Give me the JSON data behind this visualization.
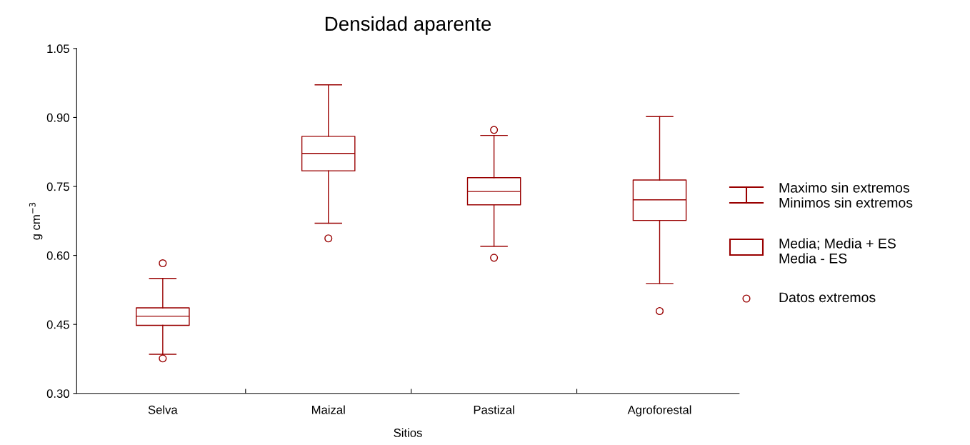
{
  "chart_data": {
    "type": "box",
    "title": "Densidad aparente",
    "xlabel": "Sitios",
    "ylabel": "g cm$^{−3}$",
    "categories": [
      "Selva",
      "Maizal",
      "Pastizal",
      "Agroforestal"
    ],
    "color": "#990000",
    "boxes": [
      {
        "low": 0.385,
        "q1": 0.448,
        "median": 0.468,
        "q3": 0.486,
        "high": 0.55,
        "outliers": [
          0.583,
          0.376
        ]
      },
      {
        "low": 0.67,
        "q1": 0.784,
        "median": 0.822,
        "q3": 0.859,
        "high": 0.971,
        "outliers": [
          0.637
        ]
      },
      {
        "low": 0.62,
        "q1": 0.71,
        "median": 0.739,
        "q3": 0.769,
        "high": 0.861,
        "outliers": [
          0.873,
          0.595
        ]
      },
      {
        "low": 0.539,
        "q1": 0.676,
        "median": 0.721,
        "q3": 0.764,
        "high": 0.902,
        "outliers": [
          0.479
        ]
      }
    ],
    "ylim": [
      0.3,
      1.05
    ],
    "yticks": [
      {
        "value": 0.3,
        "label": "0.30"
      },
      {
        "value": 0.45,
        "label": "0.45"
      },
      {
        "value": 0.6,
        "label": "0.60"
      },
      {
        "value": 0.75,
        "label": "0.75"
      },
      {
        "value": 0.9,
        "label": "0.90"
      },
      {
        "value": 1.05,
        "label": "1.05"
      }
    ],
    "annotations": [
      "Maximo sin extremos\nMinimos sin extremos",
      "Media; Media + ES\nMedia - ES",
      "Datos extremos"
    ],
    "grid": false
  }
}
